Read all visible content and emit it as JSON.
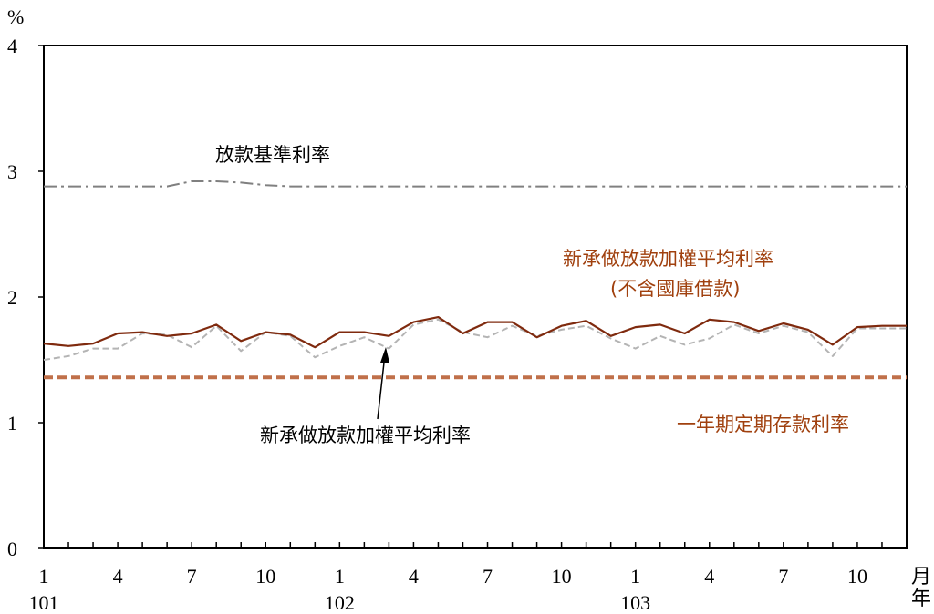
{
  "chart_data": {
    "type": "line",
    "yunit": "%",
    "ylim": [
      0,
      4
    ],
    "yticks": [
      "0",
      "1",
      "2",
      "3",
      "4"
    ],
    "grid": false,
    "x_axis": {
      "month_ticks": [
        "1",
        "4",
        "7",
        "10",
        "1",
        "4",
        "7",
        "10",
        "1",
        "4",
        "7",
        "10"
      ],
      "year_labels": [
        "101",
        "102",
        "103"
      ],
      "unit_month": "月",
      "unit_year": "年"
    },
    "annotations": {
      "prime": "放款基準利率",
      "new_loans_excl": "新承做放款加權平均利率",
      "new_loans_excl_sub": "(不含國庫借款)",
      "new_loans": "新承做放款加權平均利率",
      "deposit": "一年期定期存款利率"
    },
    "colors": {
      "prime": "#808080",
      "new_loans_excl": "#7f2a0e",
      "new_loans": "#b4b4b4",
      "deposit": "#c0704a",
      "annotation_brown": "#a0400e",
      "annotation_black": "#000000"
    },
    "x": [
      "101-1",
      "101-2",
      "101-3",
      "101-4",
      "101-5",
      "101-6",
      "101-7",
      "101-8",
      "101-9",
      "101-10",
      "101-11",
      "101-12",
      "102-1",
      "102-2",
      "102-3",
      "102-4",
      "102-5",
      "102-6",
      "102-7",
      "102-8",
      "102-9",
      "102-10",
      "102-11",
      "102-12",
      "103-1",
      "103-2",
      "103-3",
      "103-4",
      "103-5",
      "103-6",
      "103-7",
      "103-8",
      "103-9",
      "103-10",
      "103-11",
      "103-12"
    ],
    "series": [
      {
        "key": "prime",
        "style": "dashdot",
        "values": [
          2.88,
          2.88,
          2.88,
          2.88,
          2.88,
          2.88,
          2.92,
          2.92,
          2.91,
          2.89,
          2.88,
          2.88,
          2.88,
          2.88,
          2.88,
          2.88,
          2.88,
          2.88,
          2.88,
          2.88,
          2.88,
          2.88,
          2.88,
          2.88,
          2.88,
          2.88,
          2.88,
          2.88,
          2.88,
          2.88,
          2.88,
          2.88,
          2.88,
          2.88,
          2.88,
          2.88
        ]
      },
      {
        "key": "new_loans_excl",
        "style": "solid",
        "values": [
          1.63,
          1.61,
          1.63,
          1.71,
          1.72,
          1.69,
          1.71,
          1.78,
          1.65,
          1.72,
          1.7,
          1.6,
          1.72,
          1.72,
          1.69,
          1.8,
          1.84,
          1.71,
          1.8,
          1.8,
          1.68,
          1.77,
          1.81,
          1.69,
          1.76,
          1.78,
          1.71,
          1.82,
          1.8,
          1.73,
          1.79,
          1.74,
          1.62,
          1.76,
          1.77,
          1.77
        ]
      },
      {
        "key": "new_loans",
        "style": "dashed",
        "values": [
          1.5,
          1.53,
          1.59,
          1.59,
          1.71,
          1.7,
          1.6,
          1.77,
          1.57,
          1.72,
          1.69,
          1.52,
          1.61,
          1.68,
          1.59,
          1.78,
          1.82,
          1.72,
          1.68,
          1.77,
          1.69,
          1.74,
          1.77,
          1.67,
          1.59,
          1.69,
          1.62,
          1.67,
          1.78,
          1.71,
          1.77,
          1.72,
          1.53,
          1.75,
          1.75,
          1.75
        ]
      },
      {
        "key": "deposit",
        "style": "thick-dashed",
        "values": [
          1.36,
          1.36,
          1.36,
          1.36,
          1.36,
          1.36,
          1.36,
          1.36,
          1.36,
          1.36,
          1.36,
          1.36,
          1.36,
          1.36,
          1.36,
          1.36,
          1.36,
          1.36,
          1.36,
          1.36,
          1.36,
          1.36,
          1.36,
          1.36,
          1.36,
          1.36,
          1.36,
          1.36,
          1.36,
          1.36,
          1.36,
          1.36,
          1.36,
          1.36,
          1.36,
          1.36
        ]
      }
    ]
  }
}
